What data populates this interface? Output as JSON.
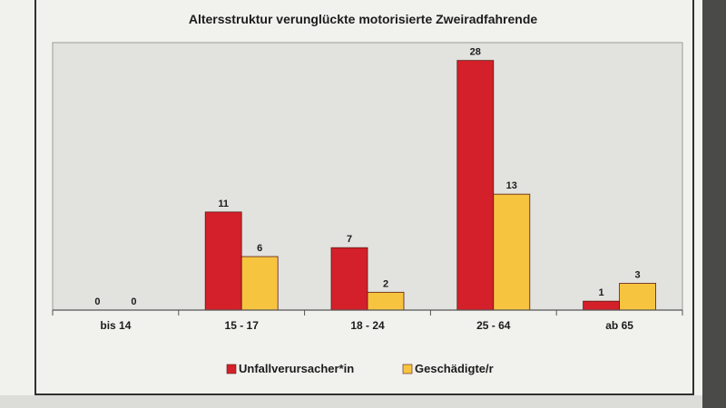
{
  "chart_data": {
    "type": "bar",
    "title": "Altersstruktur verunglückte motorisierte Zweiradfahrende",
    "categories": [
      "bis 14",
      "15 - 17",
      "18 - 24",
      "25 - 64",
      "ab 65"
    ],
    "series": [
      {
        "name": "Unfallverursacher*in",
        "values": [
          0,
          11,
          7,
          28,
          1
        ],
        "color": "#d4202a"
      },
      {
        "name": "Geschädigte/r",
        "values": [
          0,
          6,
          2,
          13,
          3
        ],
        "color": "#f7c440"
      }
    ],
    "xlabel": "",
    "ylabel": "",
    "ylim": [
      0,
      30
    ],
    "grid": false,
    "legend_position": "bottom"
  },
  "colors": {
    "plot_background": "#e2e2df",
    "axis": "#555555",
    "text": "#1c1c1c"
  }
}
